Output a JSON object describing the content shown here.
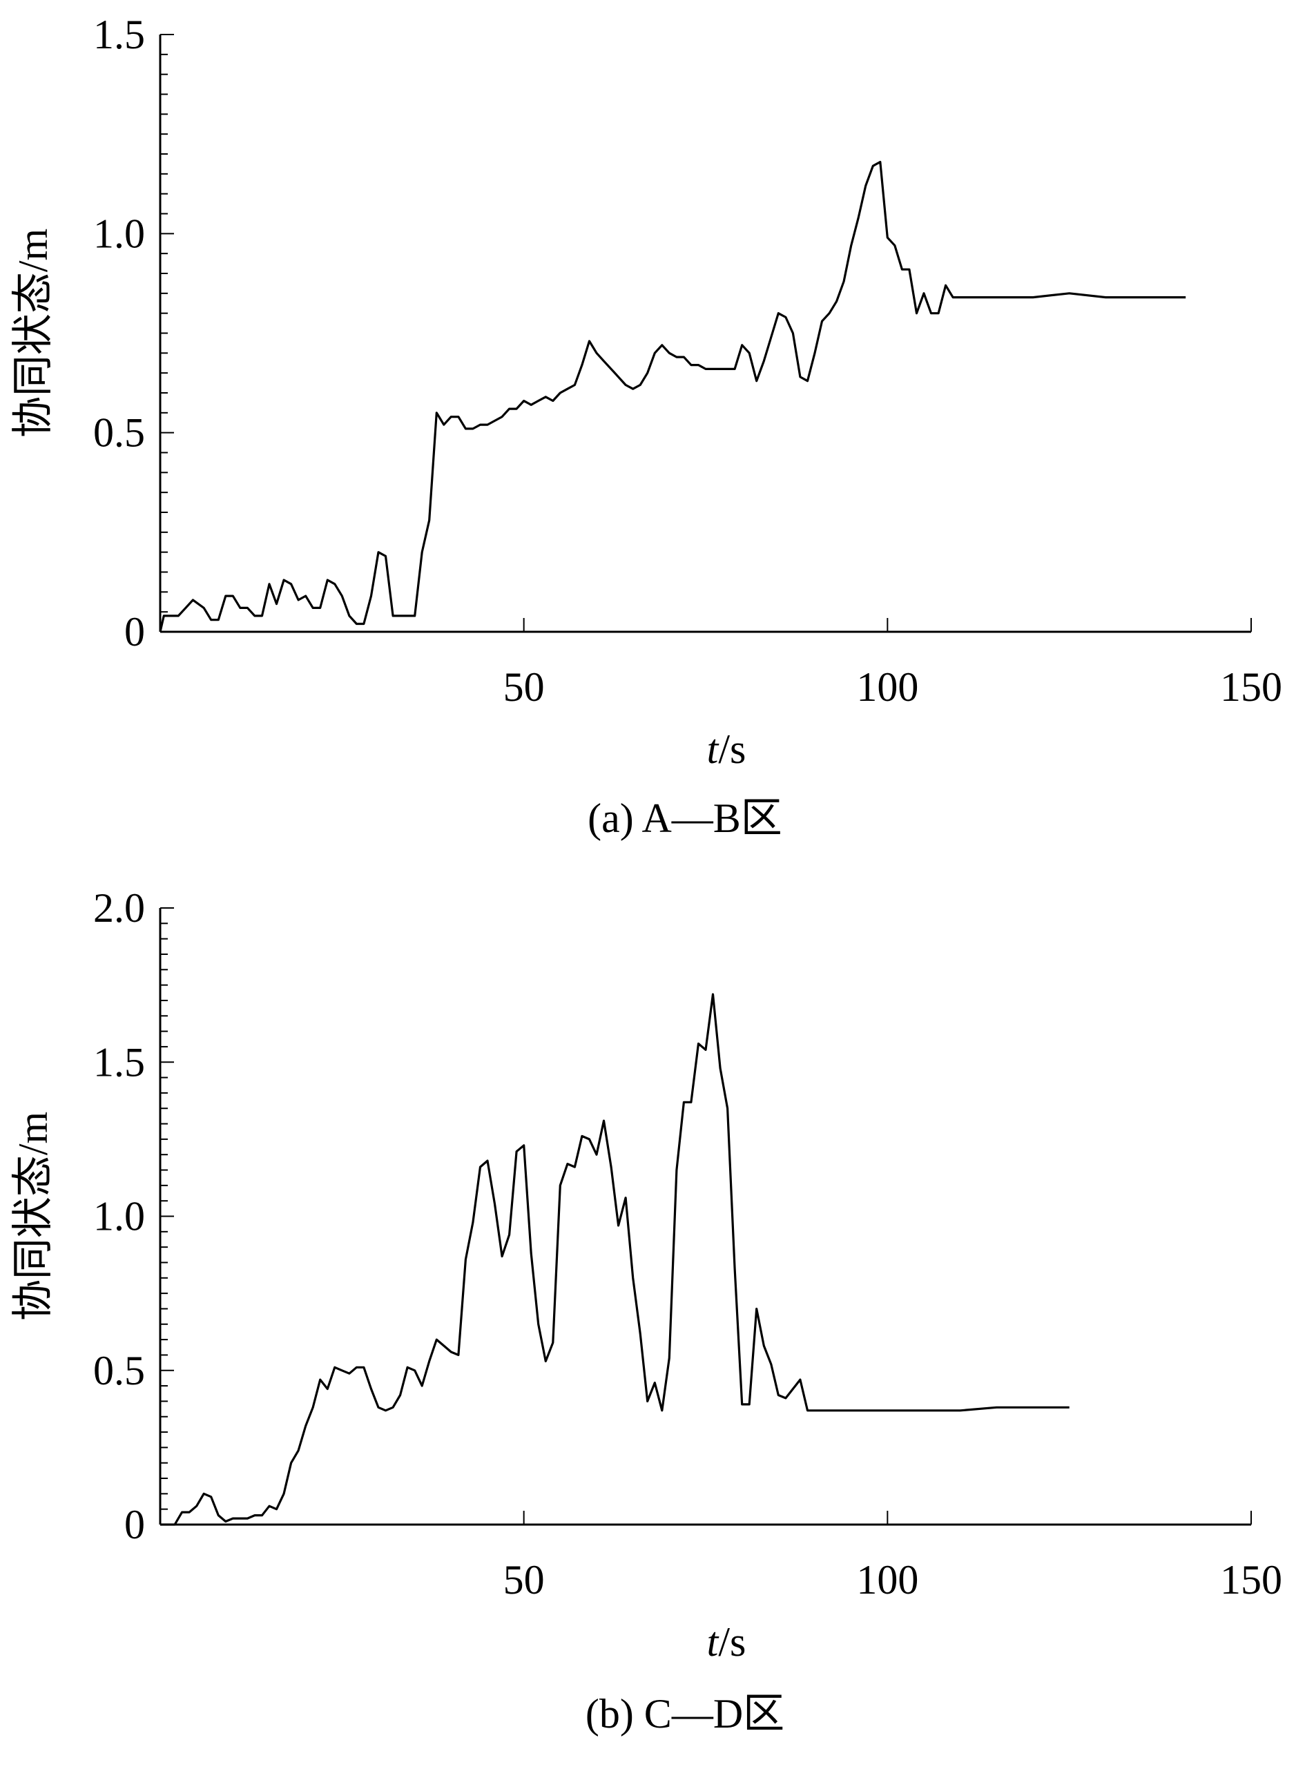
{
  "chart_data": [
    {
      "type": "line",
      "caption": "(a) A—B区",
      "xlabel_italic": "t",
      "xlabel_unit": "/s",
      "ylabel": "协同状态/m",
      "xlim": [
        0,
        150
      ],
      "ylim": [
        0,
        1.5
      ],
      "x_ticks": [
        50,
        100,
        150
      ],
      "x_tick_labels": [
        "50",
        "100",
        "150"
      ],
      "y_ticks": [
        0,
        0.5,
        1.0,
        1.5
      ],
      "y_tick_labels": [
        "0",
        "0.5",
        "1.0",
        "1.5"
      ],
      "grid": false,
      "series": [
        {
          "x": [
            0,
            0.5,
            1.5,
            2.5,
            3.5,
            4.5,
            6,
            7,
            8,
            9,
            10,
            11,
            12,
            13,
            14,
            15,
            16,
            17,
            18,
            19,
            20,
            21,
            22,
            23,
            24,
            25,
            26,
            27,
            28,
            29,
            30,
            31,
            32,
            33,
            34,
            35,
            36,
            37,
            38,
            39,
            40,
            41,
            42,
            43,
            44,
            45,
            46,
            47,
            48,
            49,
            50,
            51,
            52,
            53,
            54,
            55,
            56,
            57,
            58,
            59,
            60,
            61,
            62,
            63,
            64,
            65,
            66,
            67,
            68,
            69,
            70,
            71,
            72,
            73,
            74,
            75,
            76,
            77,
            78,
            79,
            80,
            81,
            82,
            83,
            84,
            85,
            86,
            87,
            88,
            89,
            90,
            91,
            92,
            93,
            94,
            95,
            96,
            97,
            98,
            99,
            100,
            101,
            102,
            103,
            104,
            105,
            106,
            107,
            108,
            109,
            110,
            115,
            120,
            125,
            130,
            135,
            140,
            141
          ],
          "y": [
            0.0,
            0.04,
            0.04,
            0.04,
            0.06,
            0.08,
            0.06,
            0.03,
            0.03,
            0.09,
            0.09,
            0.06,
            0.06,
            0.04,
            0.04,
            0.12,
            0.07,
            0.13,
            0.12,
            0.08,
            0.09,
            0.06,
            0.06,
            0.13,
            0.12,
            0.09,
            0.04,
            0.02,
            0.02,
            0.09,
            0.2,
            0.19,
            0.04,
            0.04,
            0.04,
            0.04,
            0.2,
            0.28,
            0.55,
            0.52,
            0.54,
            0.54,
            0.51,
            0.51,
            0.52,
            0.52,
            0.53,
            0.54,
            0.56,
            0.56,
            0.58,
            0.57,
            0.58,
            0.59,
            0.58,
            0.6,
            0.61,
            0.62,
            0.67,
            0.73,
            0.7,
            0.68,
            0.66,
            0.64,
            0.62,
            0.61,
            0.62,
            0.65,
            0.7,
            0.72,
            0.7,
            0.69,
            0.69,
            0.67,
            0.67,
            0.66,
            0.66,
            0.66,
            0.66,
            0.66,
            0.72,
            0.7,
            0.63,
            0.68,
            0.74,
            0.8,
            0.79,
            0.75,
            0.64,
            0.63,
            0.7,
            0.78,
            0.8,
            0.83,
            0.88,
            0.97,
            1.04,
            1.12,
            1.17,
            1.18,
            0.99,
            0.97,
            0.91,
            0.91,
            0.8,
            0.85,
            0.8,
            0.8,
            0.87,
            0.84,
            0.84,
            0.84,
            0.84,
            0.85,
            0.84,
            0.84,
            0.84,
            0.84
          ]
        }
      ]
    },
    {
      "type": "line",
      "caption": "(b) C—D区",
      "xlabel_italic": "t",
      "xlabel_unit": "/s",
      "ylabel": "协同状态/m",
      "xlim": [
        0,
        150
      ],
      "ylim": [
        0,
        2.0
      ],
      "x_ticks": [
        50,
        100,
        150
      ],
      "x_tick_labels": [
        "50",
        "100",
        "150"
      ],
      "y_ticks": [
        0,
        0.5,
        1.0,
        1.5,
        2.0
      ],
      "y_tick_labels": [
        "0",
        "0.5",
        "1.0",
        "1.5",
        "2.0"
      ],
      "grid": false,
      "series": [
        {
          "x": [
            0,
            1,
            2,
            3,
            4,
            5,
            6,
            7,
            8,
            9,
            10,
            11,
            12,
            13,
            14,
            15,
            16,
            17,
            18,
            19,
            20,
            21,
            22,
            23,
            24,
            25,
            26,
            27,
            28,
            29,
            30,
            31,
            32,
            33,
            34,
            35,
            36,
            37,
            38,
            39,
            40,
            41,
            42,
            43,
            44,
            45,
            46,
            47,
            48,
            49,
            50,
            51,
            52,
            53,
            54,
            55,
            56,
            57,
            58,
            59,
            60,
            61,
            62,
            63,
            64,
            65,
            66,
            67,
            68,
            69,
            70,
            71,
            72,
            73,
            74,
            75,
            76,
            77,
            78,
            79,
            80,
            81,
            82,
            83,
            84,
            85,
            86,
            87,
            88,
            89,
            90,
            95,
            100,
            105,
            110,
            115,
            120,
            125
          ],
          "y": [
            0.0,
            0.0,
            0.0,
            0.04,
            0.04,
            0.06,
            0.1,
            0.09,
            0.03,
            0.01,
            0.02,
            0.02,
            0.02,
            0.03,
            0.03,
            0.06,
            0.05,
            0.1,
            0.2,
            0.24,
            0.32,
            0.38,
            0.47,
            0.44,
            0.51,
            0.5,
            0.49,
            0.51,
            0.51,
            0.44,
            0.38,
            0.37,
            0.38,
            0.42,
            0.51,
            0.5,
            0.45,
            0.53,
            0.6,
            0.58,
            0.56,
            0.55,
            0.86,
            0.98,
            1.16,
            1.18,
            1.04,
            0.87,
            0.94,
            1.21,
            1.23,
            0.88,
            0.65,
            0.53,
            0.59,
            1.1,
            1.17,
            1.16,
            1.26,
            1.25,
            1.2,
            1.31,
            1.16,
            0.97,
            1.06,
            0.8,
            0.62,
            0.4,
            0.46,
            0.37,
            0.54,
            1.15,
            1.37,
            1.37,
            1.56,
            1.54,
            1.72,
            1.48,
            1.35,
            0.83,
            0.39,
            0.39,
            0.7,
            0.58,
            0.52,
            0.42,
            0.41,
            0.44,
            0.47,
            0.37,
            0.37,
            0.37,
            0.37,
            0.37,
            0.37,
            0.38,
            0.38,
            0.38
          ]
        }
      ]
    }
  ]
}
